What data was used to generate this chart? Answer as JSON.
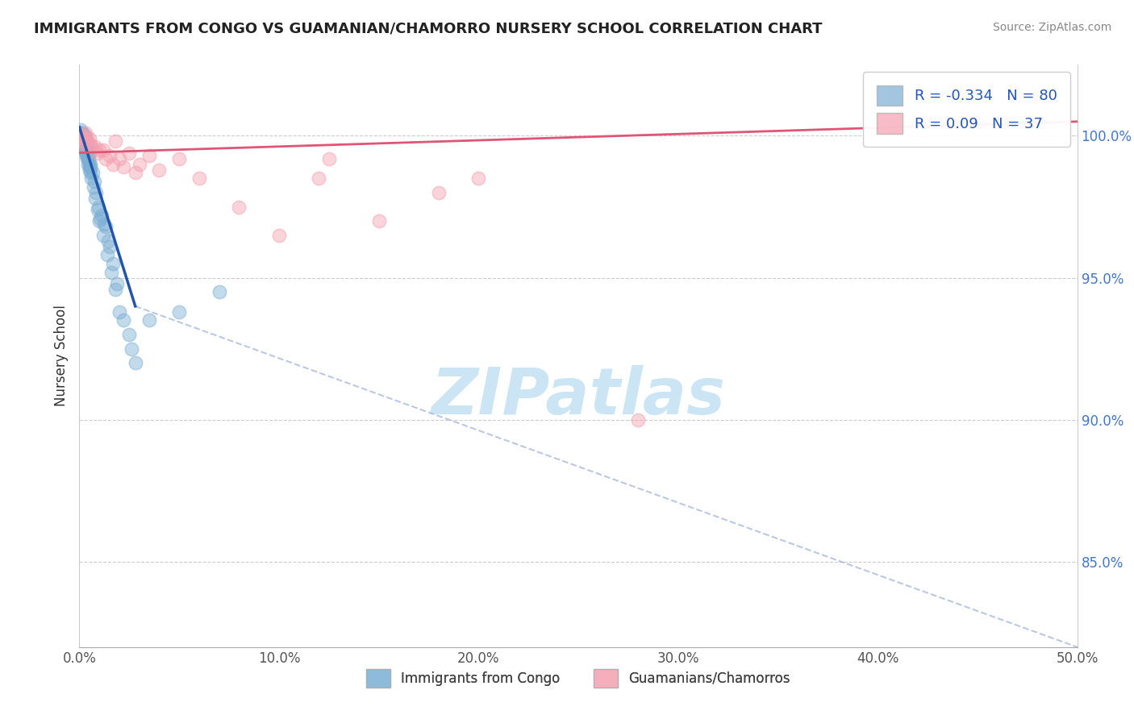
{
  "title": "IMMIGRANTS FROM CONGO VS GUAMANIAN/CHAMORRO NURSERY SCHOOL CORRELATION CHART",
  "source": "Source: ZipAtlas.com",
  "ylabel": "Nursery School",
  "xlim": [
    0.0,
    50.0
  ],
  "ylim": [
    82.0,
    102.5
  ],
  "xticks": [
    0.0,
    10.0,
    20.0,
    30.0,
    40.0,
    50.0
  ],
  "yticks": [
    85.0,
    90.0,
    95.0,
    100.0
  ],
  "ytick_labels": [
    "85.0%",
    "90.0%",
    "95.0%",
    "100.0%"
  ],
  "xtick_labels": [
    "0.0%",
    "10.0%",
    "20.0%",
    "30.0%",
    "40.0%",
    "50.0%"
  ],
  "blue_R": -0.334,
  "blue_N": 80,
  "pink_R": 0.09,
  "pink_N": 37,
  "blue_color": "#7bafd4",
  "pink_color": "#f4a0b0",
  "blue_line_color": "#2255aa",
  "pink_line_color": "#e05575",
  "dash_color": "#aabbdd",
  "watermark_color": "#cce5f5",
  "legend_blue_label": "Immigrants from Congo",
  "legend_pink_label": "Guamanians/Chamorros",
  "blue_scatter_x": [
    0.05,
    0.08,
    0.12,
    0.15,
    0.18,
    0.2,
    0.22,
    0.25,
    0.28,
    0.3,
    0.05,
    0.1,
    0.15,
    0.2,
    0.25,
    0.3,
    0.35,
    0.4,
    0.45,
    0.5,
    0.08,
    0.12,
    0.18,
    0.22,
    0.28,
    0.32,
    0.38,
    0.42,
    0.48,
    0.55,
    0.06,
    0.1,
    0.14,
    0.2,
    0.26,
    0.3,
    0.36,
    0.4,
    0.46,
    0.52,
    0.07,
    0.11,
    0.16,
    0.21,
    0.27,
    0.33,
    0.37,
    0.43,
    0.49,
    0.54,
    0.6,
    0.7,
    0.8,
    0.9,
    1.0,
    1.2,
    1.4,
    1.6,
    1.8,
    2.0,
    2.5,
    0.65,
    0.75,
    0.85,
    1.1,
    1.3,
    1.5,
    1.7,
    1.9,
    2.2,
    0.55,
    0.95,
    1.05,
    1.25,
    1.45,
    2.8,
    3.5,
    5.0,
    7.0,
    2.6
  ],
  "blue_scatter_y": [
    100.0,
    100.1,
    99.9,
    100.0,
    99.8,
    99.9,
    100.0,
    99.7,
    99.8,
    99.9,
    100.2,
    99.8,
    100.1,
    99.9,
    100.0,
    99.6,
    99.7,
    99.5,
    99.6,
    99.4,
    100.0,
    99.9,
    99.8,
    99.7,
    99.6,
    99.5,
    99.4,
    99.3,
    99.2,
    99.0,
    100.1,
    100.0,
    99.9,
    99.8,
    99.7,
    99.5,
    99.4,
    99.3,
    99.1,
    98.9,
    100.0,
    99.9,
    99.8,
    99.6,
    99.5,
    99.3,
    99.2,
    99.0,
    98.8,
    98.7,
    98.5,
    98.2,
    97.8,
    97.4,
    97.0,
    96.5,
    95.8,
    95.2,
    94.6,
    93.8,
    93.0,
    98.7,
    98.4,
    98.0,
    97.2,
    96.8,
    96.1,
    95.5,
    94.8,
    93.5,
    98.9,
    97.5,
    97.1,
    96.9,
    96.3,
    92.0,
    93.5,
    93.8,
    94.5,
    92.5
  ],
  "pink_scatter_x": [
    0.1,
    0.2,
    0.3,
    0.5,
    0.8,
    1.2,
    1.8,
    2.5,
    3.5,
    5.0,
    0.15,
    0.25,
    0.4,
    0.6,
    1.0,
    1.5,
    2.0,
    3.0,
    4.0,
    6.0,
    0.18,
    0.35,
    0.55,
    0.9,
    1.3,
    1.7,
    2.2,
    2.8,
    8.0,
    10.0,
    12.0,
    15.0,
    18.0,
    20.0,
    28.0,
    12.5,
    45.0
  ],
  "pink_scatter_y": [
    100.0,
    99.8,
    100.1,
    99.9,
    99.6,
    99.5,
    99.8,
    99.4,
    99.3,
    99.2,
    100.0,
    99.7,
    99.9,
    99.6,
    99.5,
    99.3,
    99.2,
    99.0,
    98.8,
    98.5,
    99.9,
    99.8,
    99.7,
    99.4,
    99.2,
    99.0,
    98.9,
    98.7,
    97.5,
    96.5,
    98.5,
    97.0,
    98.0,
    98.5,
    90.0,
    99.2,
    100.5
  ],
  "blue_line_x0": 0.0,
  "blue_line_y0": 100.3,
  "blue_line_x1": 2.8,
  "blue_line_y1": 94.0,
  "blue_dash_x0": 2.8,
  "blue_dash_y0": 94.0,
  "blue_dash_x1": 50.0,
  "blue_dash_y1": 82.0,
  "pink_line_x0": 0.0,
  "pink_line_y0": 99.4,
  "pink_line_x1": 50.0,
  "pink_line_y1": 100.5
}
